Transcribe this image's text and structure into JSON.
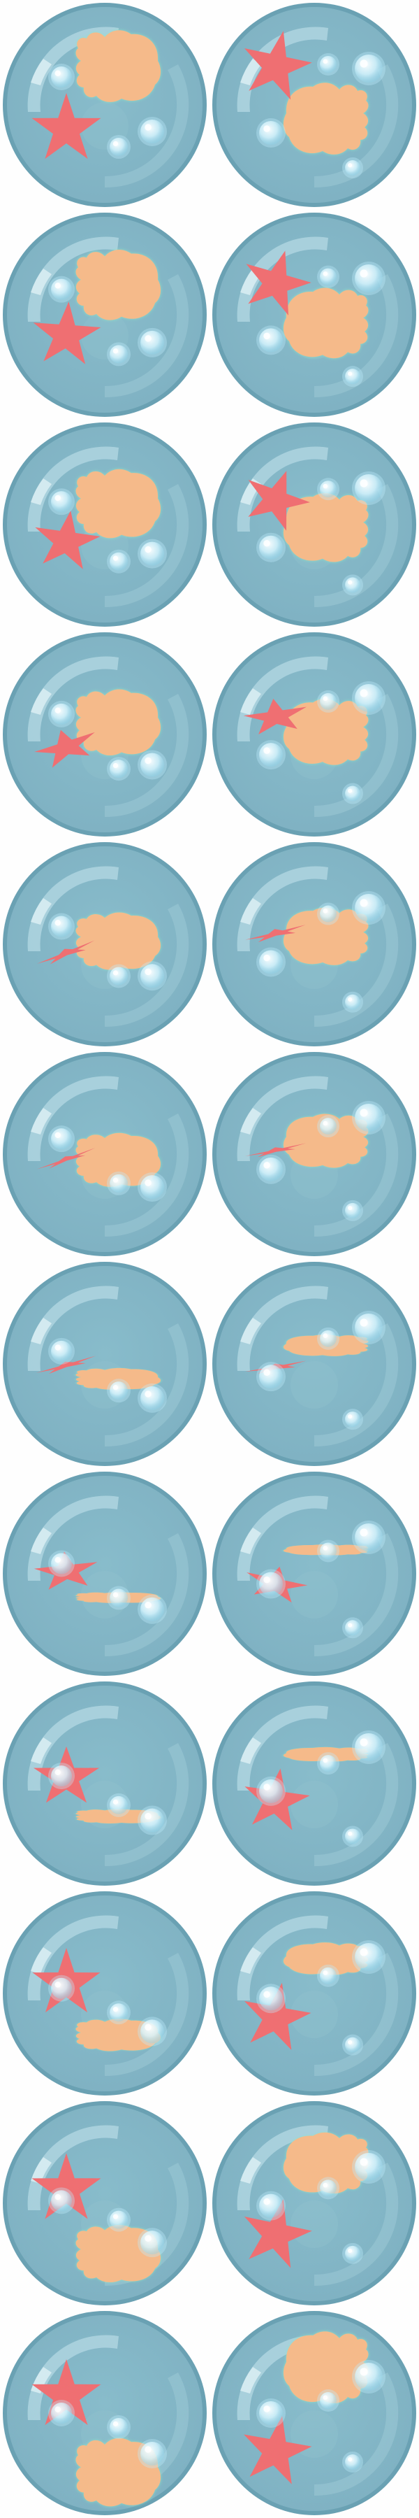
{
  "sprite_sheet": {
    "columns": 2,
    "rows": 12,
    "colors": {
      "background": "#fefefe",
      "bubble_body": "#7fb1c2",
      "bubble_edge": "#6aa1b3",
      "bubble_inner_rim": "#9cc9d6",
      "highlight": "#c6e6ee",
      "fish_body": "#f5ba8a",
      "fish_edge_glow": "#8fe6c6",
      "starfish": "#ef6f72",
      "air_bubble": "#d9f6ff"
    },
    "frames": [
      {
        "fish_width": 1.0,
        "fish_flip": 0,
        "star_scale": 1.0,
        "star_squash": 1.0,
        "star_rot": 0
      },
      {
        "fish_width": 1.0,
        "fish_flip": 1,
        "star_scale": 1.0,
        "star_squash": 1.0,
        "star_rot": 12
      },
      {
        "fish_width": 0.98,
        "fish_flip": 0,
        "star_scale": 0.98,
        "star_squash": 0.95,
        "star_rot": 4
      },
      {
        "fish_width": 0.98,
        "fish_flip": 1,
        "star_scale": 0.98,
        "star_squash": 0.95,
        "star_rot": 16
      },
      {
        "fish_width": 0.96,
        "fish_flip": 0,
        "star_scale": 0.95,
        "star_squash": 0.9,
        "star_rot": 8
      },
      {
        "fish_width": 0.96,
        "fish_flip": 1,
        "star_scale": 0.95,
        "star_squash": 0.9,
        "star_rot": 20
      },
      {
        "fish_width": 0.92,
        "fish_flip": 0,
        "star_scale": 0.92,
        "star_squash": 0.55,
        "star_rot": -18
      },
      {
        "fish_width": 0.92,
        "fish_flip": 1,
        "star_scale": 0.92,
        "star_squash": 0.55,
        "star_rot": -8
      },
      {
        "fish_width": 0.8,
        "fish_flip": 0,
        "star_scale": 0.9,
        "star_squash": 0.15,
        "star_rot": -22
      },
      {
        "fish_width": 0.8,
        "fish_flip": 1,
        "star_scale": 0.9,
        "star_squash": 0.15,
        "star_rot": -14
      },
      {
        "fish_width": 0.75,
        "fish_flip": 0,
        "star_scale": 0.9,
        "star_squash": 0.1,
        "star_rot": -20
      },
      {
        "fish_width": 0.75,
        "fish_flip": 1,
        "star_scale": 0.9,
        "star_squash": 0.1,
        "star_rot": -12
      },
      {
        "fish_width": 0.3,
        "fish_flip": 0,
        "star_scale": 0.9,
        "star_squash": 0.12,
        "star_rot": -16
      },
      {
        "fish_width": 0.3,
        "fish_flip": 1,
        "star_scale": 0.9,
        "star_squash": 0.12,
        "star_rot": -10
      },
      {
        "fish_width": 0.15,
        "fish_flip": 0,
        "star_scale": 0.92,
        "star_squash": 0.6,
        "star_rot": -6
      },
      {
        "fish_width": 0.15,
        "fish_flip": 1,
        "star_scale": 0.9,
        "star_squash": 0.55,
        "star_rot": 12
      },
      {
        "fish_width": 0.2,
        "fish_flip": 0,
        "star_scale": 0.95,
        "star_squash": 0.9,
        "star_rot": 0
      },
      {
        "fish_width": 0.2,
        "fish_flip": 1,
        "star_scale": 0.95,
        "star_squash": 0.95,
        "star_rot": 8
      },
      {
        "fish_width": 0.45,
        "fish_flip": 0,
        "star_scale": 0.98,
        "star_squash": 1.0,
        "star_rot": 0
      },
      {
        "fish_width": 0.45,
        "fish_flip": 1,
        "star_scale": 0.98,
        "star_squash": 1.0,
        "star_rot": 10
      },
      {
        "fish_width": 0.8,
        "fish_flip": 0,
        "star_scale": 1.0,
        "star_squash": 1.0,
        "star_rot": 0
      },
      {
        "fish_width": 0.85,
        "fish_flip": 1,
        "star_scale": 1.0,
        "star_squash": 1.0,
        "star_rot": 12
      },
      {
        "fish_width": 0.95,
        "fish_flip": 0,
        "star_scale": 1.0,
        "star_squash": 1.0,
        "star_rot": 0
      },
      {
        "fish_width": 1.0,
        "fish_flip": 1,
        "star_scale": 1.0,
        "star_squash": 1.0,
        "star_rot": 10
      }
    ]
  }
}
